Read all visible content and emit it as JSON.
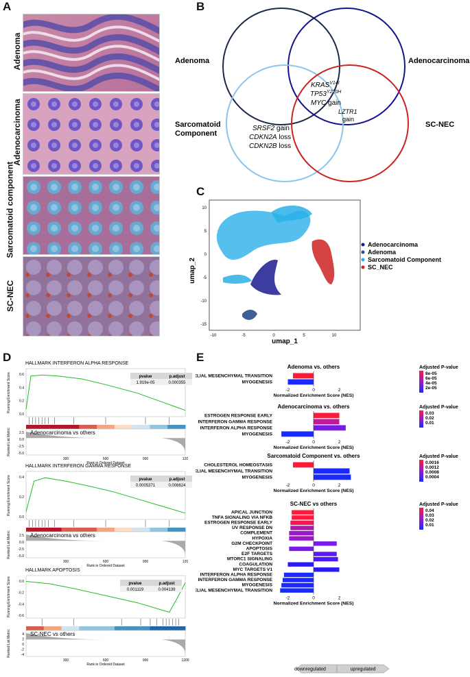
{
  "panels": {
    "A": "A",
    "B": "B",
    "C": "C",
    "D": "D",
    "E": "E"
  },
  "panelA": {
    "labels": [
      "Adenoma",
      "Adenocarcinoma",
      "Sarcomatoid component",
      "SC-NEC"
    ]
  },
  "panelB": {
    "sets": {
      "adenoma": "Adenoma",
      "adenocarcinoma": "Adenocarcinoma",
      "sarcomatoid": "Sarcomatoid\nComponent",
      "scnec": "SC-NEC"
    },
    "sarcomatoid_line1": "Sarcomatoid",
    "sarcomatoid_line2": "Component",
    "center": {
      "kras": "KRAS",
      "kras_sup": "V14I",
      "tp53": "TP53",
      "tp53_sup": "Y220H",
      "myc": "MYC",
      "myc_suffix": " gain",
      "lztr1": "LZTR1",
      "lztr1_suffix": "gain"
    },
    "sarcomatoid_only": {
      "srsf2": "SRSF2",
      "srsf2_suffix": " gain",
      "cdkn2a": "CDKN2A",
      "cdkn2a_suffix": " loss",
      "cdkn2b": "CDKN2B",
      "cdkn2b_suffix": " loss"
    }
  },
  "panelC": {
    "xlabel": "umap_1",
    "ylabel": "umap_2",
    "xticks": [
      "-10",
      "-5",
      "0",
      "5",
      "10"
    ],
    "yticks": [
      "10",
      "5",
      "0",
      "-5",
      "-10",
      "-15"
    ],
    "legend": [
      {
        "label": "Adenocarcinoma",
        "color": "#1b1b8f"
      },
      {
        "label": "Adenoma",
        "color": "#2a4e8c"
      },
      {
        "label": "Sarcomatoid Component",
        "color": "#2ab0e8"
      },
      {
        "label": "SC_NEC",
        "color": "#cc2222"
      }
    ]
  },
  "panelD": {
    "ylabel_top": "Running Enrichment Score",
    "ylabel_bottom": "Ranked List Metric",
    "xlabel": "Rank in Ordered Dataset",
    "plots": [
      {
        "title": "HALLMARK INTERFERON ALPHA RESPONSE",
        "pvalue_label": "pvalue",
        "padj_label": "p.adjust",
        "pvalue": "1.919e-05",
        "padj": "0.000355",
        "comparison": "Adenocarcinoma vs others",
        "xticks": [
          "300",
          "600",
          "900",
          "120"
        ],
        "es_ticks": [
          "0.6",
          "0.4",
          "0.2",
          "0.0"
        ],
        "metric_ticks": [
          "2.5",
          "0.0",
          "-2.5",
          "-5.0"
        ]
      },
      {
        "title": "HALLMARK INTERFERON GAMMA RESPONSE",
        "pvalue_label": "pvalue",
        "padj_label": "p.adjust",
        "pvalue": "0.0005371",
        "padj": "0.006624",
        "comparison": "Adenocarcinoma vs others",
        "xticks": [
          "300",
          "600",
          "900",
          "120"
        ],
        "es_ticks": [
          "0.4",
          "0.2",
          "0.0"
        ],
        "metric_ticks": [
          "2.5",
          "0.0",
          "-2.5",
          "-5.0"
        ]
      },
      {
        "title": "HALLMARK APOPTOSIS",
        "pvalue_label": "pvalue",
        "padj_label": "p.adjust",
        "pvalue": "0.001119",
        "padj": "0.004139",
        "comparison": "SC-NEC vs others",
        "xticks": [
          "300",
          "600",
          "900",
          "1200"
        ],
        "es_ticks": [
          "0.0",
          "-0.2",
          "-0.4",
          "-0.6"
        ],
        "metric_ticks": [
          "4",
          "2",
          "0",
          "-2",
          "-4"
        ]
      }
    ]
  },
  "chart_data": [
    {
      "type": "bar",
      "title": "Adenoma vs. others",
      "xlabel": "Normalized Enrichment Score (NES)",
      "categories": [
        "EPITHELIAL MESENCHYMAL TRANSITION",
        "MYOGENESIS"
      ],
      "values": [
        -1.6,
        -2.0
      ],
      "colors": [
        "#ff1a3a",
        "#1a2aff"
      ],
      "xlim": [
        -3.2,
        3.2
      ],
      "xticks": [
        "-2",
        "0",
        "2"
      ],
      "legend_title": "Adjusted P-value",
      "legend_ticks": [
        "8e-05",
        "6e-05",
        "4e-05",
        "2e-05"
      ]
    },
    {
      "type": "bar",
      "title": "Adenocarcinoma vs. others",
      "xlabel": "Normalized Enrichment Score (NES)",
      "categories": [
        "ESTROGEN RESPONSE EARLY",
        "INTERFERON GAMMA RESPONSE",
        "INTERFERON ALPHA RESPONSE",
        "MYOGENESIS"
      ],
      "values": [
        2.0,
        2.0,
        2.5,
        -2.5
      ],
      "colors": [
        "#ff1a3a",
        "#c01a9a",
        "#7a1aea",
        "#1a2aff"
      ],
      "xlim": [
        -3.2,
        3.2
      ],
      "xticks": [
        "-2",
        "0",
        "2"
      ],
      "legend_title": "Adjusted P-value",
      "legend_ticks": [
        "0.03",
        "0.02",
        "0.01"
      ]
    },
    {
      "type": "bar",
      "title": "Sarcomatoid Component vs. others",
      "xlabel": "Normalized Enrichment Score (NES)",
      "categories": [
        "CHOLESTEROL HOMEOSTASIS",
        "EPITHELIAL MESENCHYMAL TRANSITION",
        "MYOGENESIS"
      ],
      "values": [
        -1.6,
        2.8,
        2.9
      ],
      "colors": [
        "#ff1a3a",
        "#1a2aff",
        "#1a2aff"
      ],
      "xlim": [
        -3.2,
        3.2
      ],
      "xticks": [
        "-2",
        "0",
        "2"
      ],
      "legend_title": "Adjusted P-value",
      "legend_ticks": [
        "0.0016",
        "0.0012",
        "0.0008",
        "0.0004"
      ]
    },
    {
      "type": "bar",
      "title": "SC-NEC vs others",
      "xlabel": "Normalized Enrichment Score (NES)",
      "categories": [
        "APICAL JUNCTION",
        "TNFA SIGNALING VIA NFKB",
        "ESTROGEN RESPONSE EARLY",
        "UV RESPONSE DN",
        "COMPLEMENT",
        "HYPOXIA",
        "G2M CHECKPOINT",
        "APOPTOSIS",
        "E2F TARGETS",
        "MTORC1 SIGNALING",
        "COAGULATION",
        "MYC TARGETS V1",
        "INTERFERON ALPHA RESPONSE",
        "INTERFERON GAMMA RESPONSE",
        "MYOGENESIS",
        "EPITHELIAL MESENCHYMAL TRANSITION"
      ],
      "values": [
        -1.7,
        -1.7,
        -1.8,
        -1.8,
        -1.9,
        -1.9,
        1.8,
        -1.9,
        1.8,
        1.9,
        -2.0,
        2.0,
        -2.3,
        -2.4,
        -2.5,
        -2.6
      ],
      "colors": [
        "#ff1a3a",
        "#ff1a3a",
        "#ee1a5a",
        "#b01aaa",
        "#9a1ac8",
        "#9a1ac8",
        "#7a1aea",
        "#7a1aea",
        "#5a1af0",
        "#4a1af5",
        "#2a1afa",
        "#2a1afa",
        "#1a2aff",
        "#1a2aff",
        "#1a2aff",
        "#1a2aff"
      ],
      "xlim": [
        -3.2,
        3.2
      ],
      "xticks": [
        "-2",
        "0",
        "2"
      ],
      "legend_title": "Adjusted P-value",
      "legend_ticks": [
        "0.04",
        "0.03",
        "0.02",
        "0.01"
      ]
    }
  ],
  "panelE": {
    "down_label": "downregulated",
    "up_label": "upregulated"
  }
}
